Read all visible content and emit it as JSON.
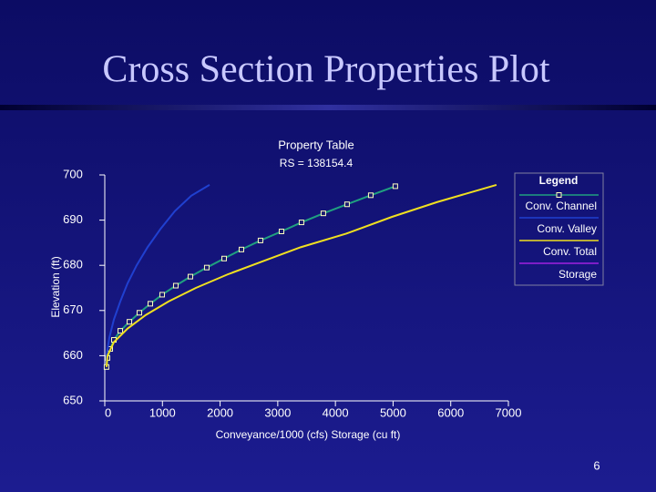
{
  "slide_title": "Cross Section Properties Plot",
  "page_number": "6",
  "chart_data": {
    "type": "line",
    "title": "Property Table",
    "subtitle": "RS = 138154.4",
    "x_label": "Conveyance/1000 (cfs)  Storage (cu ft)",
    "y_label": "Elevation (ft)",
    "legend_title": "Legend",
    "xlim": [
      0,
      7000
    ],
    "ylim": [
      650,
      700
    ],
    "xticks": [
      0,
      1000,
      2000,
      3000,
      4000,
      5000,
      6000,
      7000
    ],
    "yticks": [
      650,
      660,
      670,
      680,
      690,
      700
    ],
    "series": [
      {
        "name": "Conv. Channel",
        "color": "#20a080",
        "marker": "square",
        "x": [
          30,
          47,
          95,
          158,
          269,
          427,
          600,
          790,
          995,
          1232,
          1485,
          1769,
          2070,
          2370,
          2701,
          3065,
          3412,
          3791,
          4202,
          4613,
          5039
        ],
        "values": [
          657.5,
          659.5,
          661.5,
          663.5,
          665.5,
          667.5,
          669.5,
          671.5,
          673.5,
          675.5,
          677.5,
          679.5,
          681.5,
          683.5,
          685.5,
          687.5,
          689.5,
          691.5,
          693.5,
          695.5,
          697.5
        ]
      },
      {
        "name": "Conv. Valley",
        "color": "#2040d0",
        "x": [
          30,
          30,
          79,
          158,
          269,
          395,
          553,
          742,
          964,
          1216,
          1501,
          1817
        ],
        "values": [
          657.5,
          660,
          664,
          668,
          672,
          676,
          680,
          684,
          688,
          692,
          695.4,
          697.8
        ]
      },
      {
        "name": "Conv. Total",
        "color": "#f0e020",
        "x": [
          30,
          47,
          158,
          395,
          711,
          1106,
          1580,
          2133,
          2765,
          3397,
          4187,
          4976,
          5766,
          6793
        ],
        "values": [
          657.5,
          660,
          663,
          666,
          669,
          672,
          675,
          678,
          681,
          684,
          687,
          690.7,
          694,
          697.8
        ]
      },
      {
        "name": "Storage",
        "color": "#a020e0",
        "x": [],
        "values": []
      }
    ]
  }
}
